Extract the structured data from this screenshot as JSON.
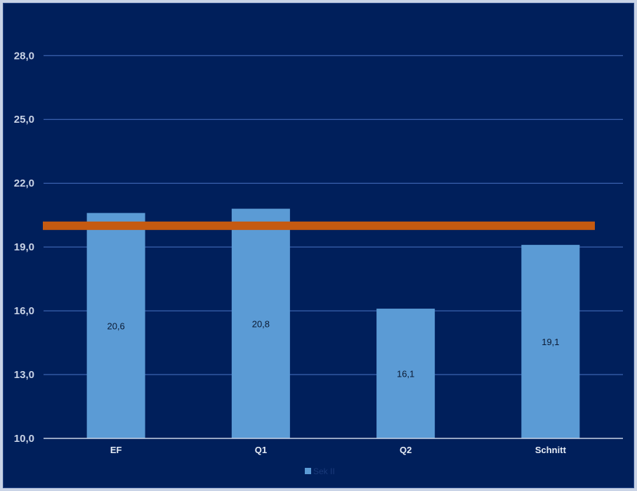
{
  "chart_data": {
    "type": "bar",
    "categories": [
      "EF",
      "Q1",
      "Q2",
      "Schnitt"
    ],
    "series": [
      {
        "name": "Sek II",
        "values": [
          20.6,
          20.8,
          16.1,
          19.1
        ],
        "data_labels": [
          "20,6",
          "20,8",
          "16,1",
          "19,1"
        ],
        "color": "#5b9bd5"
      }
    ],
    "reference_line": {
      "value": 20.0,
      "color": "#c55a11"
    },
    "ylim": [
      10,
      28.9
    ],
    "yticks": [
      10,
      13,
      16,
      19,
      22,
      25,
      28
    ],
    "ytick_labels": [
      "10,0",
      "13,0",
      "16,0",
      "19,0",
      "22,0",
      "25,0",
      "28,0"
    ],
    "grid": true,
    "legend_position": "bottom",
    "background_color": "#001f5b",
    "gridline_color": "#4a73c4"
  }
}
